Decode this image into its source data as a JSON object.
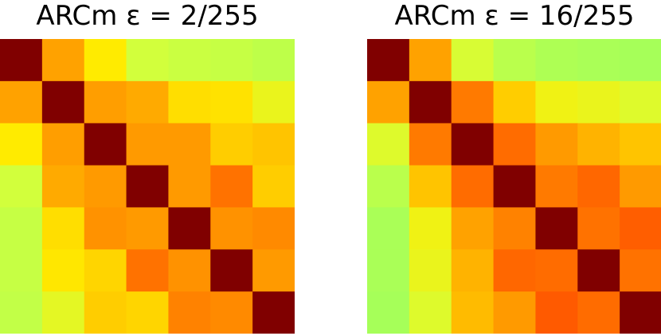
{
  "chart_data": [
    {
      "type": "heatmap",
      "title": "ARCm ε = 2/255",
      "title_parts": {
        "prefix": "ARCm ",
        "symbol": "ε",
        "suffix": " = 2/255"
      },
      "rows": 7,
      "cols": 7,
      "colormap": "YlOrRd-like (light green = low, yellow, orange, dark red = high)",
      "grid": false,
      "values": [
        [
          1.0,
          0.62,
          0.45,
          0.3,
          0.26,
          0.24,
          0.2
        ],
        [
          0.62,
          1.0,
          0.63,
          0.6,
          0.48,
          0.47,
          0.38
        ],
        [
          0.45,
          0.63,
          1.0,
          0.64,
          0.64,
          0.52,
          0.54
        ],
        [
          0.3,
          0.6,
          0.64,
          1.0,
          0.64,
          0.74,
          0.52
        ],
        [
          0.24,
          0.48,
          0.66,
          0.64,
          1.0,
          0.66,
          0.68
        ],
        [
          0.24,
          0.46,
          0.5,
          0.74,
          0.66,
          1.0,
          0.64
        ],
        [
          0.22,
          0.36,
          0.52,
          0.5,
          0.7,
          0.68,
          1.0
        ]
      ]
    },
    {
      "type": "heatmap",
      "title": "ARCm ε = 16/255",
      "title_parts": {
        "prefix": "ARCm ",
        "symbol": "ε",
        "suffix": " = 16/255"
      },
      "rows": 7,
      "cols": 7,
      "colormap": "YlOrRd-like (light green = low, yellow, orange, dark red = high)",
      "grid": false,
      "values": [
        [
          1.0,
          0.62,
          0.32,
          0.18,
          0.12,
          0.1,
          0.08
        ],
        [
          0.62,
          1.0,
          0.72,
          0.52,
          0.4,
          0.38,
          0.34
        ],
        [
          0.34,
          0.72,
          1.0,
          0.76,
          0.64,
          0.58,
          0.54
        ],
        [
          0.18,
          0.54,
          0.76,
          1.0,
          0.72,
          0.78,
          0.64
        ],
        [
          0.1,
          0.4,
          0.62,
          0.7,
          1.0,
          0.74,
          0.82
        ],
        [
          0.1,
          0.38,
          0.58,
          0.78,
          0.76,
          1.0,
          0.74
        ],
        [
          0.08,
          0.34,
          0.56,
          0.64,
          0.84,
          0.76,
          1.0
        ]
      ]
    }
  ]
}
